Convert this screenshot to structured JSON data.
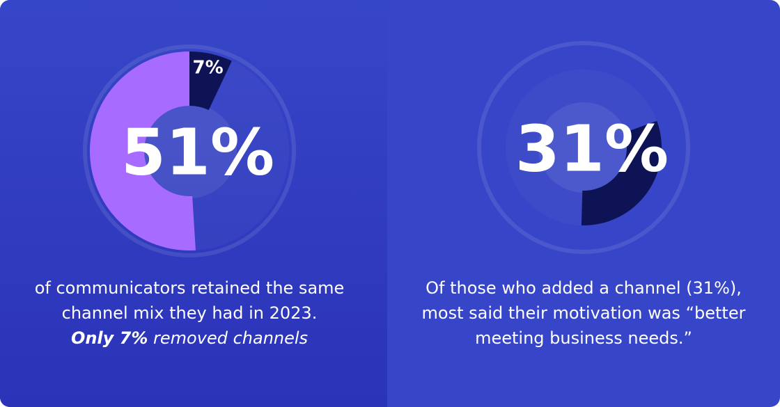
{
  "chart_data": [
    {
      "type": "donut",
      "values": [
        51,
        7
      ],
      "value_labels": [
        "51%",
        "7%"
      ],
      "colors": [
        "#a86bff",
        "#0e1356"
      ],
      "caption": "of communicators retained the same channel mix they had in 2023.",
      "note_bold": "Only 7%",
      "note": "removed channels"
    },
    {
      "type": "donut",
      "values": [
        31
      ],
      "value_labels": [
        "31%"
      ],
      "colors": [
        "#0e1356"
      ],
      "caption": "Of those who added a channel (31%), most said their motivation was “better meeting business needs.”"
    }
  ]
}
